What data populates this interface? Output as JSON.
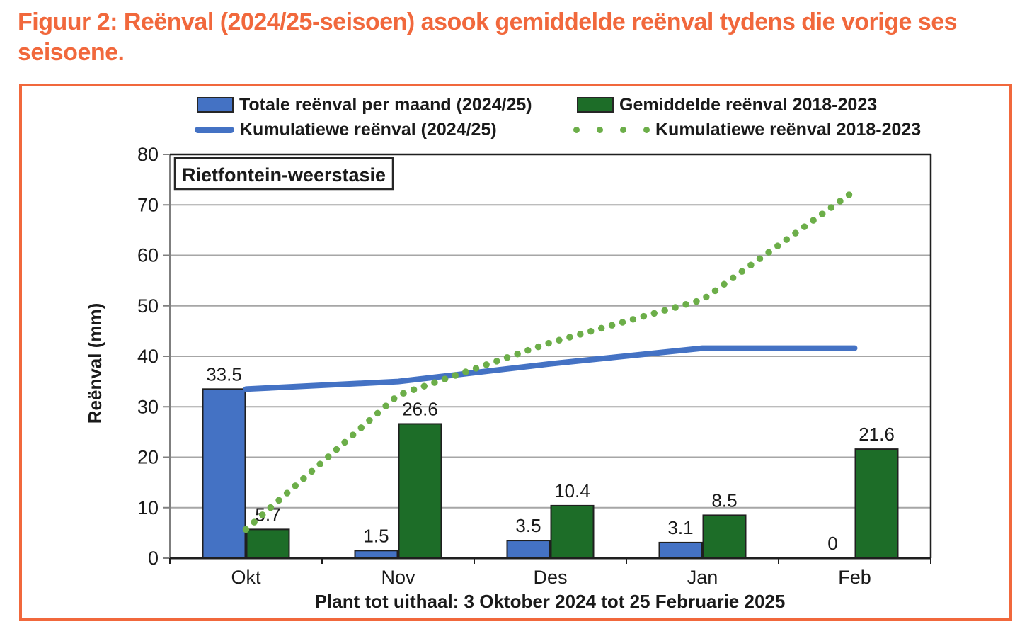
{
  "figure_title": "Figuur 2: Reënval (2024/25-seisoen) asook gemiddelde reënval tydens die vorige ses seisoene.",
  "station_label": "Rietfontein-weerstasie",
  "colors": {
    "accent_orange": "#F1683C",
    "bar_blue": "#4472C4",
    "bar_green": "#1D6D28",
    "line_blue": "#4472C4",
    "dots_green": "#6CAE49",
    "gridline": "#A6A6A6",
    "axis_dark": "#1F1F1F",
    "text": "#1A1A1A"
  },
  "chart_data": {
    "type": "bar+line combo",
    "title": "Figuur 2: Reënval (2024/25-seisoen) asook gemiddelde reënval tydens die vorige ses seisoene.",
    "categories": [
      "Okt",
      "Nov",
      "Des",
      "Jan",
      "Feb"
    ],
    "series": [
      {
        "name": "Totale reënval per maand (2024/25)",
        "type": "bar",
        "color_key": "bar_blue",
        "values": [
          33.5,
          1.5,
          3.5,
          3.1,
          0
        ],
        "labels": [
          "33.5",
          "1.5",
          "3.5",
          "3.1",
          "0"
        ]
      },
      {
        "name": "Gemiddelde reënval 2018-2023",
        "type": "bar",
        "color_key": "bar_green",
        "values": [
          5.7,
          26.6,
          10.4,
          8.5,
          21.6
        ],
        "labels": [
          "5.7",
          "26.6",
          "10.4",
          "8.5",
          "21.6"
        ]
      },
      {
        "name": "Kumulatiewe reënval (2024/25)",
        "type": "line",
        "color_key": "line_blue",
        "values": [
          33.5,
          35.0,
          38.5,
          41.6,
          41.6
        ]
      },
      {
        "name": "Kumulatiewe reënval 2018-2023",
        "type": "dotted-line",
        "color_key": "dots_green",
        "values": [
          5.7,
          32.3,
          42.7,
          51.2,
          72.8
        ]
      }
    ],
    "ylabel": "Reënval (mm)",
    "xlabel": "Plant tot uithaal: 3 Oktober 2024 tot 25 Februarie 2025",
    "ylim": [
      0,
      80
    ],
    "yticks": [
      0,
      10,
      20,
      30,
      40,
      50,
      60,
      70,
      80
    ],
    "grid": "horizontal",
    "legend_position": "top",
    "annotation": "Rietfontein-weerstasie"
  }
}
